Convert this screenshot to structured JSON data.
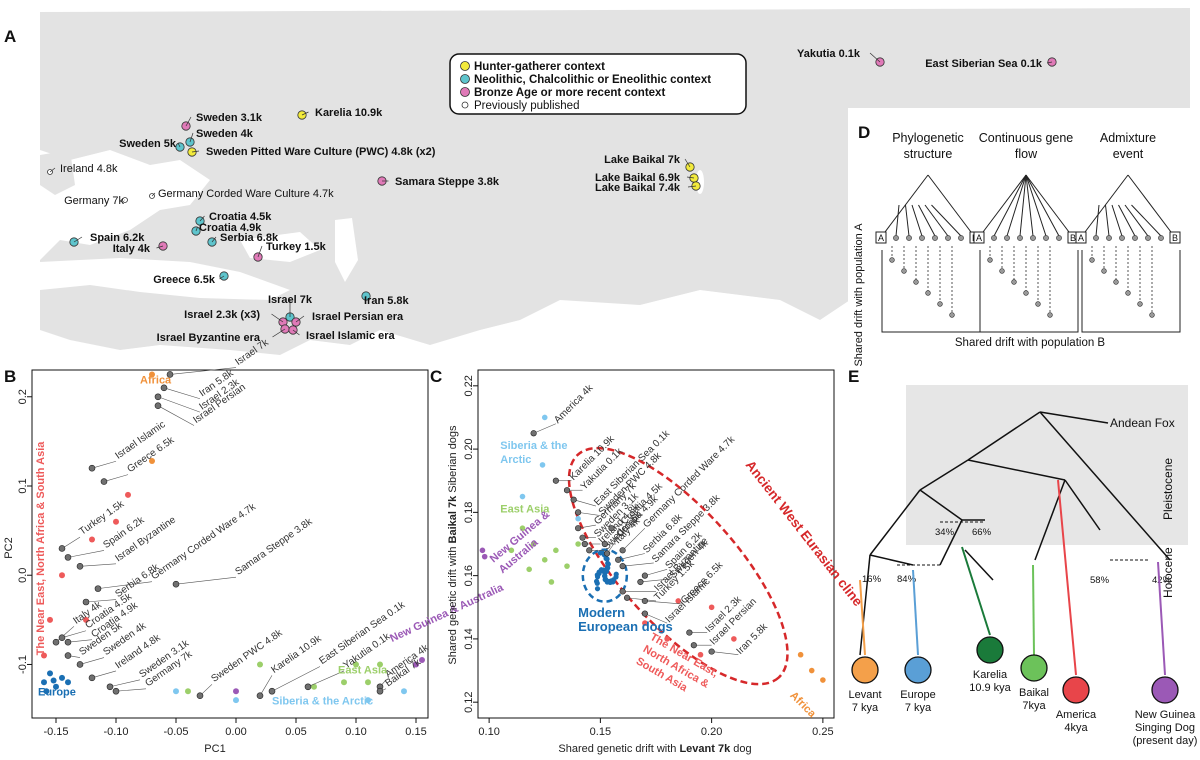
{
  "panelA": {
    "letter": "A",
    "legend": [
      {
        "label": "Hunter-gatherer context",
        "color": "#f2ea3c"
      },
      {
        "label": "Neolithic, Chalcolithic or Eneolithic context",
        "color": "#5ec4cc"
      },
      {
        "label": "Bronze Age or more recent context",
        "color": "#e07ab8"
      },
      {
        "label": "Previously published",
        "color": "#ffffff"
      }
    ],
    "sites": [
      {
        "label": "Yakutia 0.1k",
        "color": "#e07ab8"
      },
      {
        "label": "East Siberian Sea 0.1k",
        "color": "#e07ab8"
      },
      {
        "label": "Karelia 10.9k",
        "color": "#f2ea3c"
      },
      {
        "label": "Sweden 3.1k",
        "color": "#e07ab8"
      },
      {
        "label": "Sweden 4k",
        "color": "#5ec4cc"
      },
      {
        "label": "Sweden 5k",
        "color": "#5ec4cc"
      },
      {
        "label": "Sweden Pitted Ware Culture (PWC) 4.8k (x2)",
        "color": "#f2ea3c"
      },
      {
        "label": "Ireland 4.8k",
        "color": "#ffffff"
      },
      {
        "label": "Germany 7k",
        "color": "#ffffff"
      },
      {
        "label": "Germany Corded Ware Culture 4.7k",
        "color": "#ffffff"
      },
      {
        "label": "Samara Steppe 3.8k",
        "color": "#e07ab8"
      },
      {
        "label": "Lake Baikal 7k",
        "color": "#f2ea3c"
      },
      {
        "label": "Lake Baikal 6.9k",
        "color": "#f2ea3c"
      },
      {
        "label": "Lake Baikal 7.4k",
        "color": "#f2ea3c"
      },
      {
        "label": "Croatia 4.5k",
        "color": "#5ec4cc"
      },
      {
        "label": "Croatia 4.9k",
        "color": "#5ec4cc"
      },
      {
        "label": "Serbia 6.8k",
        "color": "#5ec4cc"
      },
      {
        "label": "Spain 6.2k",
        "color": "#5ec4cc"
      },
      {
        "label": "Italy 4k",
        "color": "#e07ab8"
      },
      {
        "label": "Turkey 1.5k",
        "color": "#e07ab8"
      },
      {
        "label": "Greece 6.5k",
        "color": "#5ec4cc"
      },
      {
        "label": "Israel 7k",
        "color": "#5ec4cc"
      },
      {
        "label": "Iran 5.8k",
        "color": "#5ec4cc"
      },
      {
        "label": "Israel 2.3k (x3)",
        "color": "#e07ab8"
      },
      {
        "label": "Israel Persian era",
        "color": "#e07ab8"
      },
      {
        "label": "Israel Byzantine era",
        "color": "#e07ab8"
      },
      {
        "label": "Israel Islamic era",
        "color": "#e07ab8"
      }
    ]
  },
  "panelB": {
    "letter": "B",
    "xlabel": "PC1",
    "ylabel": "PC2",
    "xticks": [
      "-0.15",
      "-0.10",
      "-0.05",
      "0.00",
      "0.05",
      "0.10",
      "0.15"
    ],
    "yticks": [
      "0.2",
      "0.1",
      "0.0",
      "-0.1"
    ],
    "groups": [
      "Africa",
      "The Near East, North Africa & South Asia",
      "Europe",
      "East Asia",
      "Siberia & the Arctic",
      "New Guinea & Australia"
    ],
    "point_labels": [
      "Israel 7k",
      "Iran 5.8k",
      "Israel 2.3k",
      "Israel Persian",
      "Israel Islamic",
      "Greece 6.5k",
      "Turkey 1.5k",
      "Spain 6.2k",
      "Israel Byzantine",
      "Germany Corded Ware 4.7k",
      "Samara Steppe 3.8k",
      "Serbia 6.8k",
      "Italy 4k",
      "Croatia 4.5k",
      "Croatia 4.9k",
      "Sweden 5k",
      "Sweden 4k",
      "Ireland 4.8k",
      "Sweden 3.1k",
      "Germany 7k",
      "Sweden PWC 4.8k",
      "Karelia 10.9k",
      "East Siberian Sea 0.1k",
      "Yakutia 0.1k",
      "America 4k",
      "Baikal 7k"
    ]
  },
  "panelC": {
    "letter": "C",
    "xlabel_pre": "Shared genetic drift with ",
    "xlabel_bold": "Levant 7k",
    "xlabel_post": " dog",
    "ylabel_pre": "Shared genetic drift with ",
    "ylabel_bold": "Baikal 7k",
    "ylabel_post": " Siberian dogs",
    "xticks": [
      "0.10",
      "0.15",
      "0.20",
      "0.25"
    ],
    "yticks": [
      "0.22",
      "0.20",
      "0.18",
      "0.16",
      "0.14",
      "0.12"
    ],
    "cline": "Ancient West Eurasian cline",
    "groups": [
      "Siberia & the Arctic",
      "East Asia",
      "New Guinea & Australia",
      "Modern European dogs",
      "The Near East, North Africa & South Asia",
      "Africa"
    ],
    "point_labels": [
      "America 4k",
      "Karelia 10.9k",
      "Yakutia 0.1k",
      "East Siberian Sea 0.1k",
      "Sweden PWC 4.8k",
      "Germany 7k",
      "Sweden 3.1k",
      "Ireland 4.8k",
      "Sweden 5k",
      "Croatia 4.5k",
      "Italy 4k",
      "Croatia 4.9k",
      "Germany Corded Ware 4.7k",
      "Serbia 6.8k",
      "Samara Steppe 3.8k",
      "Spain 6.2k",
      "Sweden 4k",
      "Israel Byzantine",
      "Turkey 1.5k",
      "Greece 6.5k",
      "Israel Islamic",
      "Israel 2.3k",
      "Israel Persian",
      "Iran 5.8k"
    ]
  },
  "panelD": {
    "letter": "D",
    "titles": [
      "Phylogenetic structure",
      "Continuous gene flow",
      "Admixture event"
    ],
    "ylabel": "Shared drift with population A",
    "xlabel": "Shared drift with  population B",
    "a": "A",
    "b": "B"
  },
  "panelE": {
    "letter": "E",
    "root": "Andean Fox",
    "eras": [
      "Pleistocene",
      "Holocene"
    ],
    "percents": [
      "34%",
      "66%",
      "16%",
      "84%",
      "58%",
      "42%"
    ],
    "leaves": [
      {
        "label": "Levant\n7 kya",
        "color": "#f4a04a"
      },
      {
        "label": "Europe\n7 kya",
        "color": "#5a9fd6"
      },
      {
        "label": "Karelia\n10.9 kya",
        "color": "#1a7a3a"
      },
      {
        "label": "Baikal\n7kya",
        "color": "#6cc25a"
      },
      {
        "label": "America\n4kya",
        "color": "#e8454a"
      },
      {
        "label": "New Guinea\nSinging Dog\n(present day)",
        "color": "#9b59b6"
      }
    ]
  },
  "colors": {
    "africa": "#f0913a",
    "neasia": "#ee5a5a",
    "europe": "#1a6fb3",
    "eastasia": "#9ccf6a",
    "siberia": "#7fc7ef",
    "newguinea": "#9b59b6",
    "ancient": "#707070",
    "land": "#e3e3e3",
    "sea": "#ffffff"
  }
}
